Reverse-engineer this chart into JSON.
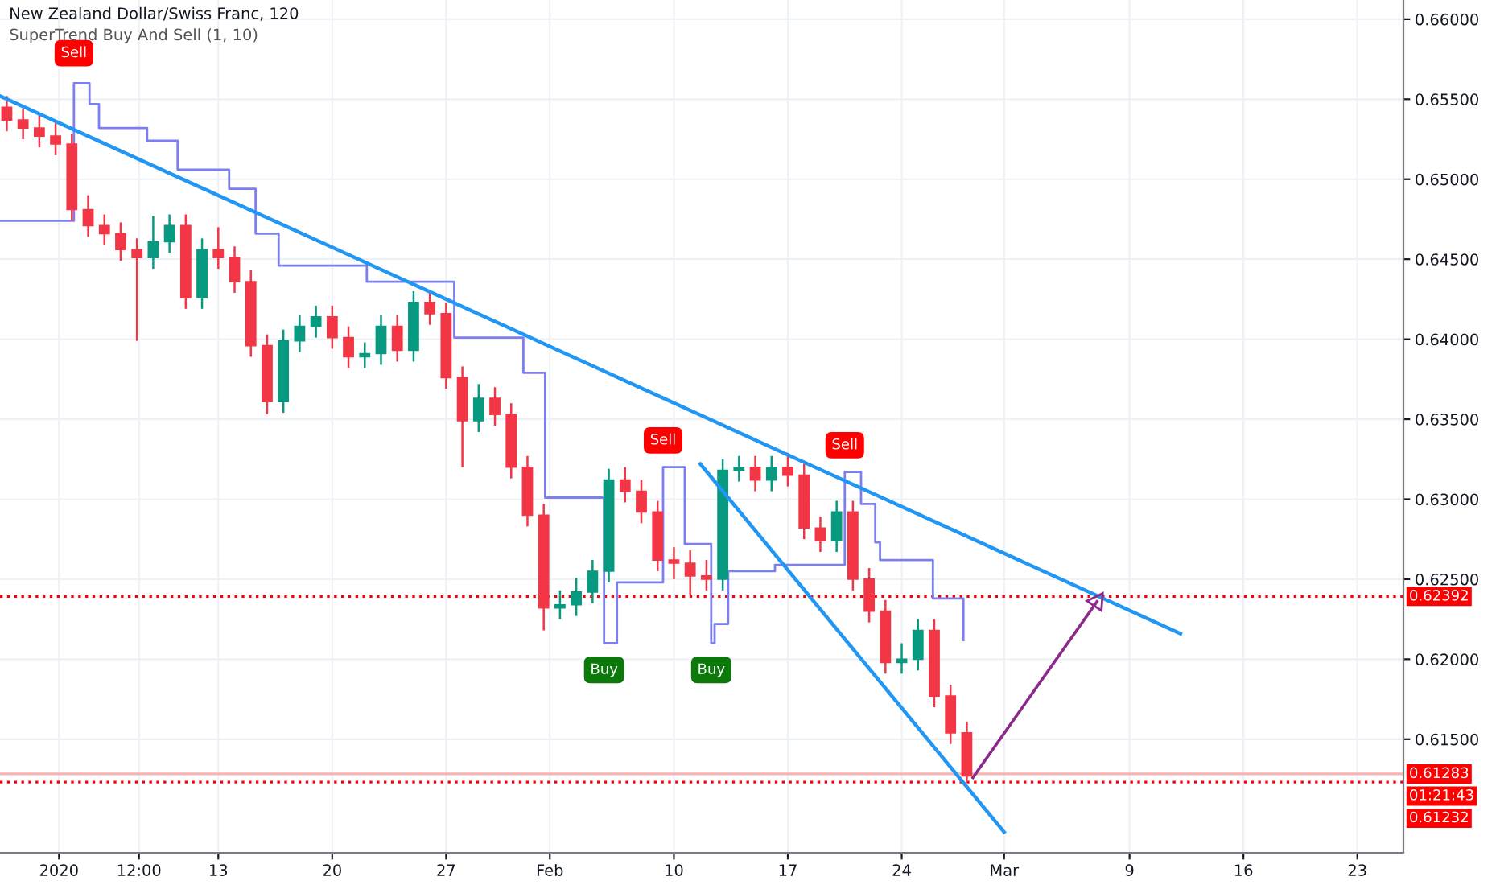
{
  "chart_data": {
    "type": "candlestick",
    "title": "New Zealand Dollar/Swiss Franc, 120",
    "subtitle": "SuperTrend Buy And Sell (1, 10)",
    "x": [
      "2019-12-31",
      "2020-01-01",
      "2020-01-02",
      "2020-01-03",
      "2020-01-04",
      "2020-01-05",
      "2020-01-06",
      "2020-01-07",
      "2020-01-08",
      "2020-01-09",
      "2020-01-10",
      "2020-01-11",
      "2020-01-12",
      "2020-01-13",
      "2020-01-14",
      "2020-01-15",
      "2020-01-16",
      "2020-01-17",
      "2020-01-18",
      "2020-01-19",
      "2020-01-20",
      "2020-01-21",
      "2020-01-22",
      "2020-01-23",
      "2020-01-24",
      "2020-01-25",
      "2020-01-26",
      "2020-01-27",
      "2020-01-28",
      "2020-01-29",
      "2020-01-30",
      "2020-01-31",
      "2020-02-01",
      "2020-02-02",
      "2020-02-03",
      "2020-02-04",
      "2020-02-05",
      "2020-02-06",
      "2020-02-07",
      "2020-02-08",
      "2020-02-09",
      "2020-02-10",
      "2020-02-11",
      "2020-02-12",
      "2020-02-13",
      "2020-02-14",
      "2020-02-15",
      "2020-02-16",
      "2020-02-17",
      "2020-02-18",
      "2020-02-19",
      "2020-02-20",
      "2020-02-21",
      "2020-02-22",
      "2020-02-23",
      "2020-02-24",
      "2020-02-25",
      "2020-02-26",
      "2020-02-27",
      "2020-02-28"
    ],
    "ohlc": [
      [
        0.6545,
        0.6552,
        0.653,
        0.6537
      ],
      [
        0.6537,
        0.6544,
        0.6525,
        0.6532
      ],
      [
        0.6532,
        0.654,
        0.652,
        0.6527
      ],
      [
        0.6527,
        0.6535,
        0.6515,
        0.6522
      ],
      [
        0.6522,
        0.6528,
        0.6474,
        0.6481
      ],
      [
        0.6481,
        0.649,
        0.6464,
        0.6471
      ],
      [
        0.6471,
        0.6478,
        0.6459,
        0.6466
      ],
      [
        0.6466,
        0.6473,
        0.6449,
        0.6456
      ],
      [
        0.6456,
        0.6463,
        0.6399,
        0.6451
      ],
      [
        0.6451,
        0.6477,
        0.6444,
        0.6461
      ],
      [
        0.6461,
        0.6478,
        0.6454,
        0.6471
      ],
      [
        0.6471,
        0.6478,
        0.6419,
        0.6426
      ],
      [
        0.6426,
        0.6463,
        0.6419,
        0.6456
      ],
      [
        0.6456,
        0.647,
        0.6444,
        0.6451
      ],
      [
        0.6451,
        0.6458,
        0.6429,
        0.6436
      ],
      [
        0.6436,
        0.6443,
        0.6389,
        0.6396
      ],
      [
        0.6396,
        0.6403,
        0.6353,
        0.6361
      ],
      [
        0.6361,
        0.6406,
        0.6354,
        0.6399
      ],
      [
        0.6399,
        0.6415,
        0.6392,
        0.6408
      ],
      [
        0.6408,
        0.6421,
        0.6401,
        0.6414
      ],
      [
        0.6414,
        0.6421,
        0.6394,
        0.6401
      ],
      [
        0.6401,
        0.6408,
        0.6382,
        0.6389
      ],
      [
        0.6389,
        0.6398,
        0.6382,
        0.6391
      ],
      [
        0.6391,
        0.6415,
        0.6384,
        0.6408
      ],
      [
        0.6408,
        0.6415,
        0.6386,
        0.6393
      ],
      [
        0.6393,
        0.643,
        0.6386,
        0.6423
      ],
      [
        0.6423,
        0.643,
        0.6409,
        0.6416
      ],
      [
        0.6416,
        0.6423,
        0.6369,
        0.6376
      ],
      [
        0.6376,
        0.6383,
        0.632,
        0.6349
      ],
      [
        0.6349,
        0.6372,
        0.6342,
        0.6363
      ],
      [
        0.6363,
        0.637,
        0.6346,
        0.6353
      ],
      [
        0.6353,
        0.636,
        0.6313,
        0.632
      ],
      [
        0.632,
        0.6327,
        0.6283,
        0.629
      ],
      [
        0.629,
        0.6297,
        0.6218,
        0.6232
      ],
      [
        0.6232,
        0.6243,
        0.6225,
        0.6234
      ],
      [
        0.6234,
        0.6251,
        0.6227,
        0.6242
      ],
      [
        0.6242,
        0.6262,
        0.6235,
        0.6255
      ],
      [
        0.6255,
        0.6319,
        0.6248,
        0.6312
      ],
      [
        0.6312,
        0.632,
        0.6298,
        0.6305
      ],
      [
        0.6305,
        0.6312,
        0.6285,
        0.6292
      ],
      [
        0.6292,
        0.6299,
        0.6255,
        0.6262
      ],
      [
        0.6262,
        0.627,
        0.625,
        0.626
      ],
      [
        0.626,
        0.6268,
        0.624,
        0.6252
      ],
      [
        0.6252,
        0.6262,
        0.6243,
        0.625
      ],
      [
        0.625,
        0.6325,
        0.6243,
        0.6318
      ],
      [
        0.6318,
        0.6327,
        0.6311,
        0.632
      ],
      [
        0.632,
        0.6327,
        0.6305,
        0.6312
      ],
      [
        0.6312,
        0.6327,
        0.6305,
        0.632
      ],
      [
        0.632,
        0.6329,
        0.6308,
        0.6315
      ],
      [
        0.6315,
        0.6322,
        0.6275,
        0.6282
      ],
      [
        0.6282,
        0.6289,
        0.6267,
        0.6274
      ],
      [
        0.6274,
        0.6299,
        0.6267,
        0.6292
      ],
      [
        0.6292,
        0.6299,
        0.6243,
        0.625
      ],
      [
        0.625,
        0.6257,
        0.6223,
        0.623
      ],
      [
        0.623,
        0.6237,
        0.6191,
        0.6198
      ],
      [
        0.6198,
        0.621,
        0.6191,
        0.62
      ],
      [
        0.62,
        0.6225,
        0.6193,
        0.6218
      ],
      [
        0.6218,
        0.6225,
        0.617,
        0.6177
      ],
      [
        0.6177,
        0.6184,
        0.6147,
        0.6154
      ],
      [
        0.6154,
        0.6161,
        0.6123,
        0.6127
      ]
    ],
    "colors": [
      "#f23645",
      "#f23645",
      "#f23645",
      "#f23645",
      "#f23645",
      "#f23645",
      "#f23645",
      "#f23645",
      "#f23645",
      "#089981",
      "#089981",
      "#f23645",
      "#089981",
      "#f23645",
      "#f23645",
      "#f23645",
      "#f23645",
      "#089981",
      "#089981",
      "#089981",
      "#f23645",
      "#f23645",
      "#089981",
      "#089981",
      "#f23645",
      "#089981",
      "#f23645",
      "#f23645",
      "#f23645",
      "#089981",
      "#f23645",
      "#f23645",
      "#f23645",
      "#f23645",
      "#089981",
      "#089981",
      "#089981",
      "#089981",
      "#f23645",
      "#f23645",
      "#f23645",
      "#f23645",
      "#f23645",
      "#f23645",
      "#089981",
      "#089981",
      "#f23645",
      "#089981",
      "#f23645",
      "#f23645",
      "#f23645",
      "#089981",
      "#f23645",
      "#f23645",
      "#f23645",
      "#089981",
      "#089981",
      "#f23645",
      "#f23645",
      "#f23645"
    ],
    "series": [
      {
        "type": "step",
        "color": "#7b7ff0",
        "x": [
          "2019-12-30T14:00",
          "2020-01-04T03:00",
          "2020-01-05T02:00",
          "2020-01-05T16:00",
          "2020-01-08T15:00",
          "2020-01-10T12:00",
          "2020-01-13T16:00",
          "2020-01-15T07:00",
          "2020-01-16T17:00",
          "2020-01-22T03:00",
          "2020-01-27T12:00",
          "2020-01-31T18:00",
          "2020-02-02T02:00",
          "2020-02-05T17:00",
          "2020-02-06T12:00",
          "2020-02-09T08:00",
          "2020-02-10T16:00",
          "2020-02-12T07:00",
          "2020-02-12T12:00",
          "2020-02-13T08:00",
          "2020-02-16T05:00",
          "2020-02-20T12:00",
          "2020-02-21T12:00",
          "2020-02-22T09:00",
          "2020-02-22T16:00",
          "2020-02-25T22:00",
          "2020-02-27T19:00"
        ],
        "values": [
          0.6474,
          0.656,
          0.6547,
          0.6532,
          0.6524,
          0.6506,
          0.6494,
          0.6466,
          0.6446,
          0.6436,
          0.6401,
          0.6379,
          0.6301,
          0.621,
          0.6248,
          0.632,
          0.6272,
          0.621,
          0.6222,
          0.6255,
          0.6259,
          0.6317,
          0.6297,
          0.6273,
          0.6262,
          0.6238,
          0.6212
        ]
      },
      {
        "type": "line",
        "color": "#2196f3",
        "x": [
          "2019-12-30T14:00",
          "2020-03-12T03:00"
        ],
        "values": [
          0.6552,
          0.6216
        ]
      },
      {
        "type": "line",
        "color": "#2196f3",
        "x": [
          "2020-02-11T15:00",
          "2020-03-01T07:00"
        ],
        "values": [
          0.6322,
          0.6092
        ]
      },
      {
        "type": "line",
        "color": "#8b2a8a",
        "marker": "triangle",
        "x": [
          "2020-02-28T09:00",
          "2020-03-07T00:00"
        ],
        "values": [
          0.6126,
          0.6236
        ]
      }
    ],
    "ref_lines": [
      {
        "axis": "y",
        "value": 0.62392,
        "label": "0.62392",
        "color": "#ff0000",
        "line_style": "dotted"
      },
      {
        "axis": "y",
        "value": 0.61283,
        "label": "0.61283",
        "color": "#f8b4b4",
        "line_style": "solid"
      },
      {
        "axis": "y",
        "value": 0.61232,
        "label": "0.61232",
        "color": "#ff0000",
        "line_style": "dotted"
      }
    ],
    "annotations": [
      {
        "text": "Sell",
        "x": "2020-01-04T03:00",
        "y": 0.6562
      },
      {
        "text": "Sell",
        "x": "2020-02-09T08:00",
        "y": 0.632
      },
      {
        "text": "Sell",
        "x": "2020-02-20T12:00",
        "y": 0.6317
      },
      {
        "text": "Buy",
        "x": "2020-02-05T17:00",
        "y": 0.621
      },
      {
        "text": "Buy",
        "x": "2020-02-12T07:00",
        "y": 0.621
      },
      "01:21:43"
    ],
    "xlim": [
      "2019-12-30T14:00",
      "2020-03-25T20:00"
    ],
    "xticks": [
      {
        "value": "2020-01-03T05:00",
        "label": "2020"
      },
      {
        "value": "2020-01-08T03:00",
        "label": "12:00"
      },
      {
        "value": "2020-01-13",
        "label": "13"
      },
      {
        "value": "2020-01-20",
        "label": "20"
      },
      {
        "value": "2020-01-27",
        "label": "27"
      },
      {
        "value": "2020-02-02T09:00",
        "label": "Feb"
      },
      {
        "value": "2020-02-10",
        "label": "10"
      },
      {
        "value": "2020-02-17",
        "label": "17"
      },
      {
        "value": "2020-02-24",
        "label": "24"
      },
      {
        "value": "2020-03-01T07:00",
        "label": "Mar"
      },
      {
        "value": "2020-03-09",
        "label": "9"
      },
      {
        "value": "2020-03-16",
        "label": "16"
      },
      {
        "value": "2020-03-23",
        "label": "23"
      }
    ],
    "ylim": [
      0.6079,
      0.6612
    ],
    "yticks": [
      {
        "value": 0.615,
        "label": "0.61500"
      },
      {
        "value": 0.62,
        "label": "0.62000"
      },
      {
        "value": 0.625,
        "label": "0.62500"
      },
      {
        "value": 0.63,
        "label": "0.63000"
      },
      {
        "value": 0.635,
        "label": "0.63500"
      },
      {
        "value": 0.64,
        "label": "0.64000"
      },
      {
        "value": 0.645,
        "label": "0.64500"
      },
      {
        "value": 0.65,
        "label": "0.65000"
      },
      {
        "value": 0.655,
        "label": "0.65500"
      },
      {
        "value": 0.66,
        "label": "0.66000"
      }
    ],
    "grid": true
  }
}
